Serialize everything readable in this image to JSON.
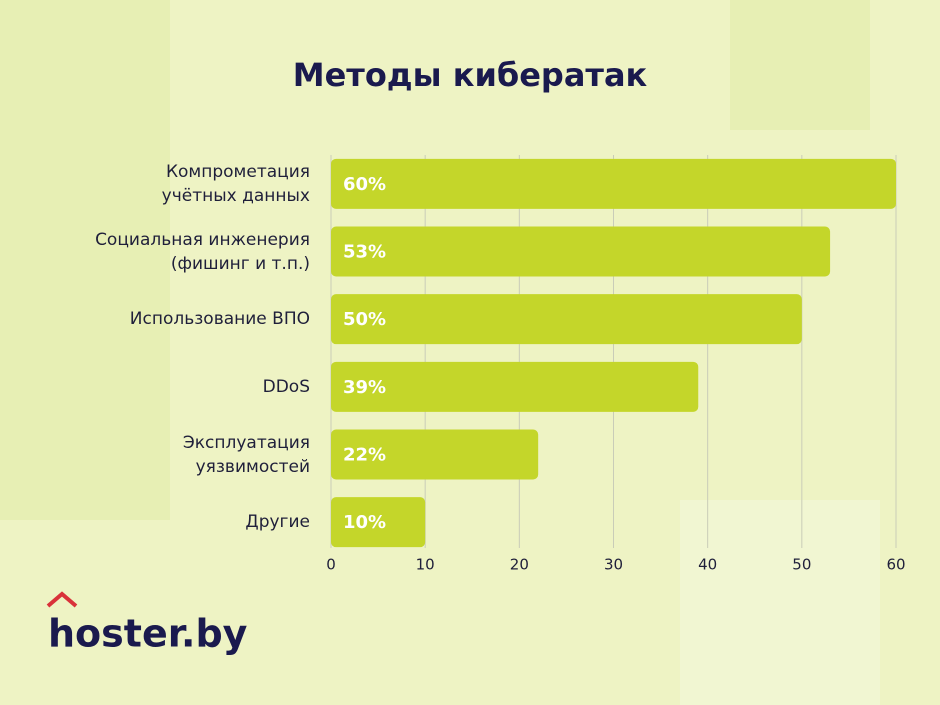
{
  "chart_data": {
    "type": "barh",
    "title": "Методы кибератак",
    "categories": [
      "Компрометация\nучётных данных",
      "Социальная инженерия\n(фишинг и т.п.)",
      "Использование ВПО",
      "DDoS",
      "Эксплуатация\nуязвимостей",
      "Другие"
    ],
    "values": [
      60,
      53,
      50,
      39,
      22,
      10
    ],
    "value_labels": [
      "60%",
      "53%",
      "50%",
      "39%",
      "22%",
      "10%"
    ],
    "color": "#c4d62a",
    "xlim": [
      0,
      60
    ],
    "xticks": [
      0,
      10,
      20,
      30,
      40,
      50,
      60
    ],
    "grid": true
  },
  "logo": "hoster.by"
}
